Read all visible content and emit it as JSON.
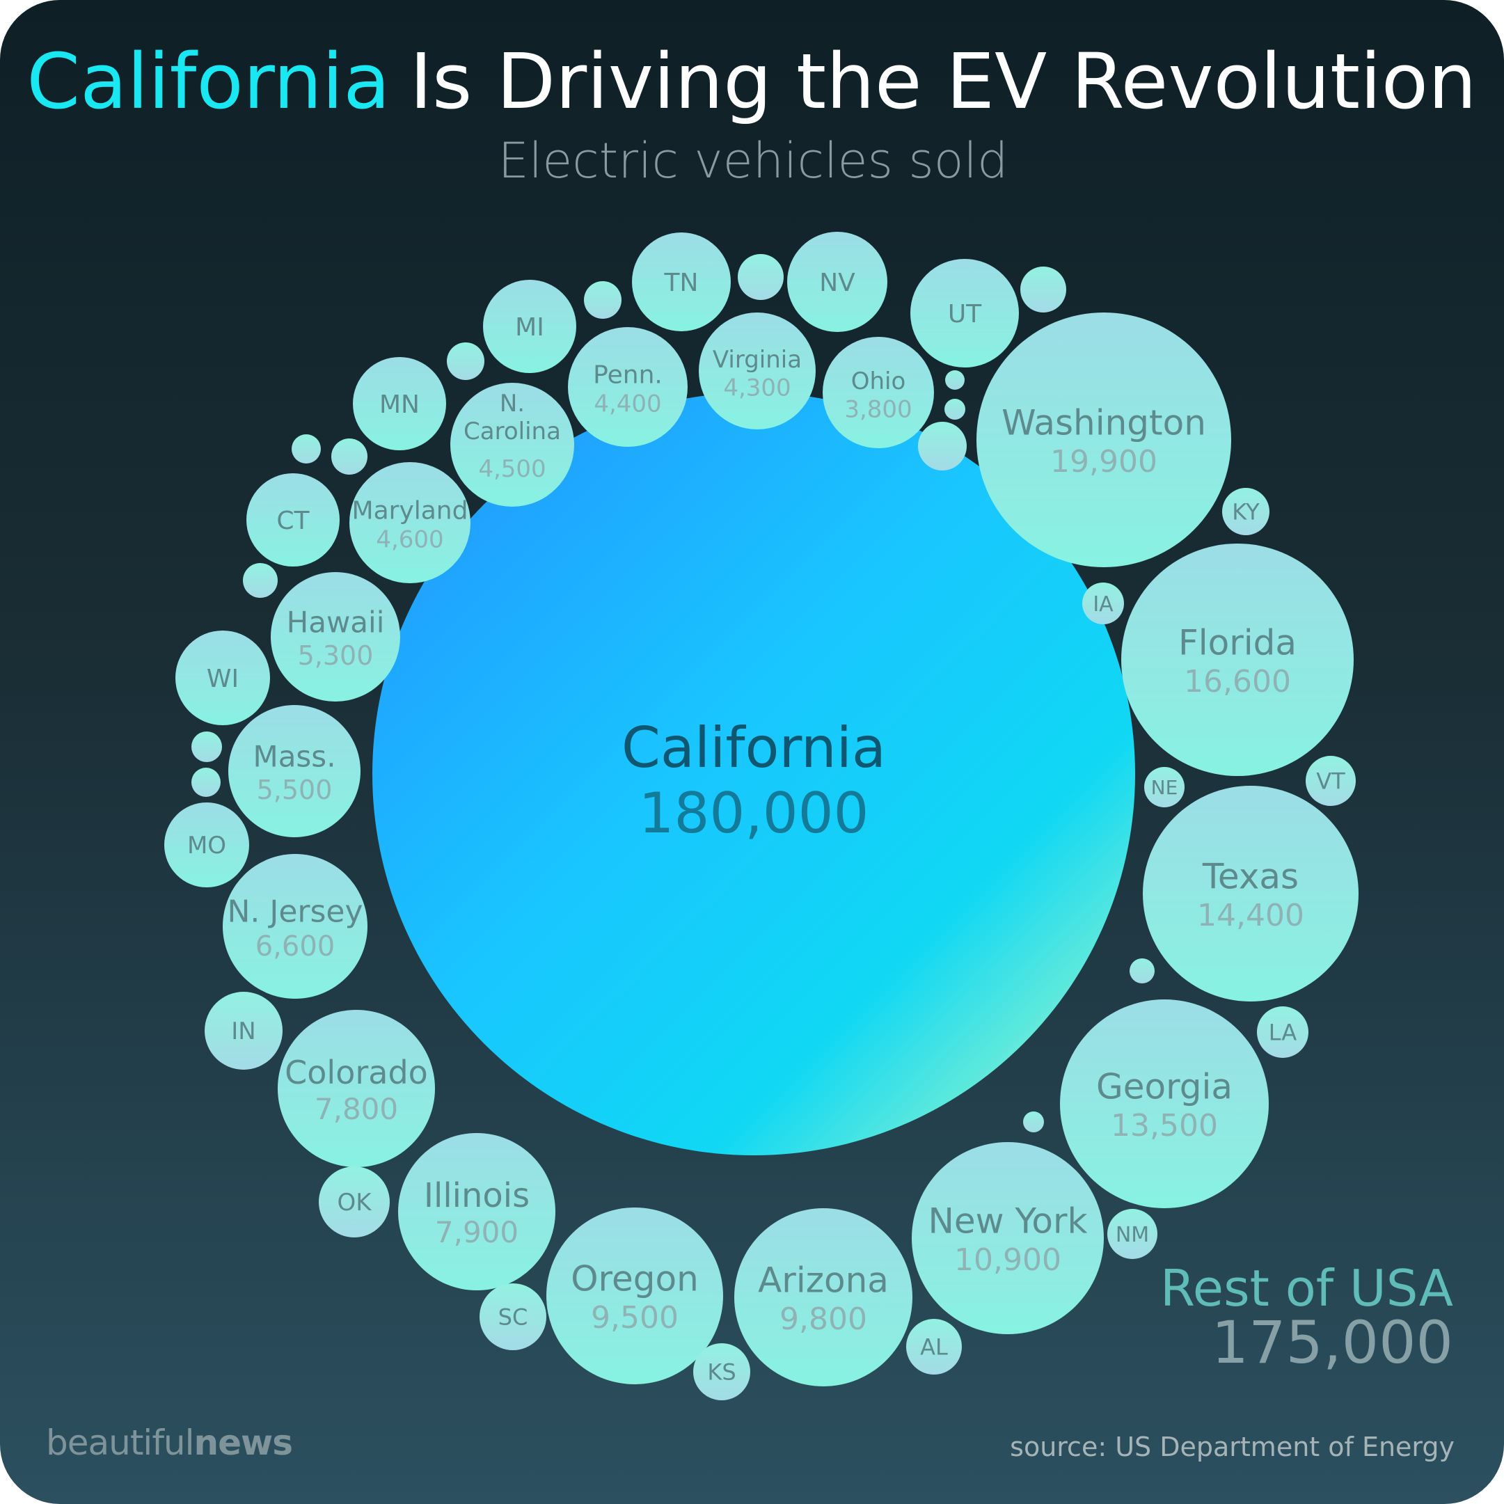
{
  "title": {
    "highlight": "California",
    "rest": "Is Driving the EV Revolution"
  },
  "subtitle": "Electric vehicles sold",
  "rest_of_usa": {
    "label": "Rest of USA",
    "value": "175,000"
  },
  "brand": {
    "part1": "beautiful",
    "part2": "news"
  },
  "source": "source: US Department of Energy",
  "colors": {
    "highlight": "#19e8f2",
    "bubble_light": "#8ff3e0",
    "bubble_mid": "#a0dde6",
    "main_bubble": "#1fb8ff"
  },
  "chart_data": {
    "type": "bubble",
    "series": [
      {
        "label": "California",
        "value": 180000,
        "value_label": "180,000"
      },
      {
        "label": "Washington",
        "value": 19900,
        "value_label": "19,900"
      },
      {
        "label": "Florida",
        "value": 16600,
        "value_label": "16,600"
      },
      {
        "label": "Texas",
        "value": 14400,
        "value_label": "14,400"
      },
      {
        "label": "Georgia",
        "value": 13500,
        "value_label": "13,500"
      },
      {
        "label": "New York",
        "value": 10900,
        "value_label": "10,900"
      },
      {
        "label": "Arizona",
        "value": 9800,
        "value_label": "9,800"
      },
      {
        "label": "Oregon",
        "value": 9500,
        "value_label": "9,500"
      },
      {
        "label": "Illinois",
        "value": 7900,
        "value_label": "7,900"
      },
      {
        "label": "Colorado",
        "value": 7800,
        "value_label": "7,800"
      },
      {
        "label": "N. Jersey",
        "value": 6600,
        "value_label": "6,600"
      },
      {
        "label": "Mass.",
        "value": 5500,
        "value_label": "5,500"
      },
      {
        "label": "Hawaii",
        "value": 5300,
        "value_label": "5,300"
      },
      {
        "label": "Maryland",
        "value": 4600,
        "value_label": "4,600"
      },
      {
        "label": "N. Carolina",
        "value": 4500,
        "value_label": "4,500"
      },
      {
        "label": "Penn.",
        "value": 4400,
        "value_label": "4,400"
      },
      {
        "label": "Virginia",
        "value": 4300,
        "value_label": "4,300"
      },
      {
        "label": "Ohio",
        "value": 3800,
        "value_label": "3,800"
      },
      {
        "label": "UT"
      },
      {
        "label": "NV"
      },
      {
        "label": "TN"
      },
      {
        "label": "MI"
      },
      {
        "label": "MN"
      },
      {
        "label": "CT"
      },
      {
        "label": "WI"
      },
      {
        "label": "MO"
      },
      {
        "label": "IN"
      },
      {
        "label": "OK"
      },
      {
        "label": "SC"
      },
      {
        "label": "KS"
      },
      {
        "label": "AL"
      },
      {
        "label": "NM"
      },
      {
        "label": "LA"
      },
      {
        "label": "VT"
      },
      {
        "label": "NE"
      },
      {
        "label": "IA"
      },
      {
        "label": "KY"
      },
      {
        "label": ""
      },
      {
        "label": ""
      },
      {
        "label": ""
      },
      {
        "label": ""
      },
      {
        "label": ""
      },
      {
        "label": ""
      },
      {
        "label": ""
      },
      {
        "label": ""
      },
      {
        "label": ""
      },
      {
        "label": ""
      },
      {
        "label": ""
      },
      {
        "label": ""
      },
      {
        "label": ""
      },
      {
        "label": ""
      }
    ]
  }
}
